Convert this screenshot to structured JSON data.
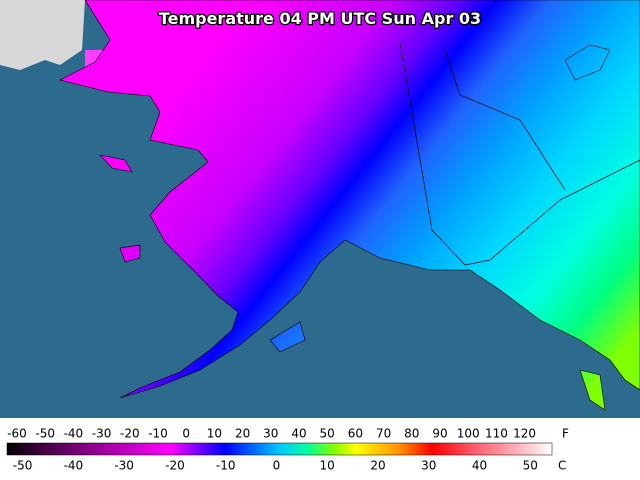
{
  "map": {
    "title": "Temperature 04 PM UTC Sun Apr 03"
  },
  "legend": {
    "fahrenheit": {
      "ticks": [
        -60,
        -50,
        -40,
        -30,
        -20,
        -10,
        0,
        10,
        20,
        30,
        40,
        50,
        60,
        70,
        80,
        90,
        100,
        110,
        120
      ],
      "unit": "F"
    },
    "celsius": {
      "ticks": [
        -50,
        -40,
        -30,
        -20,
        -10,
        0,
        10,
        20,
        30,
        40,
        50
      ],
      "unit": "C"
    }
  }
}
